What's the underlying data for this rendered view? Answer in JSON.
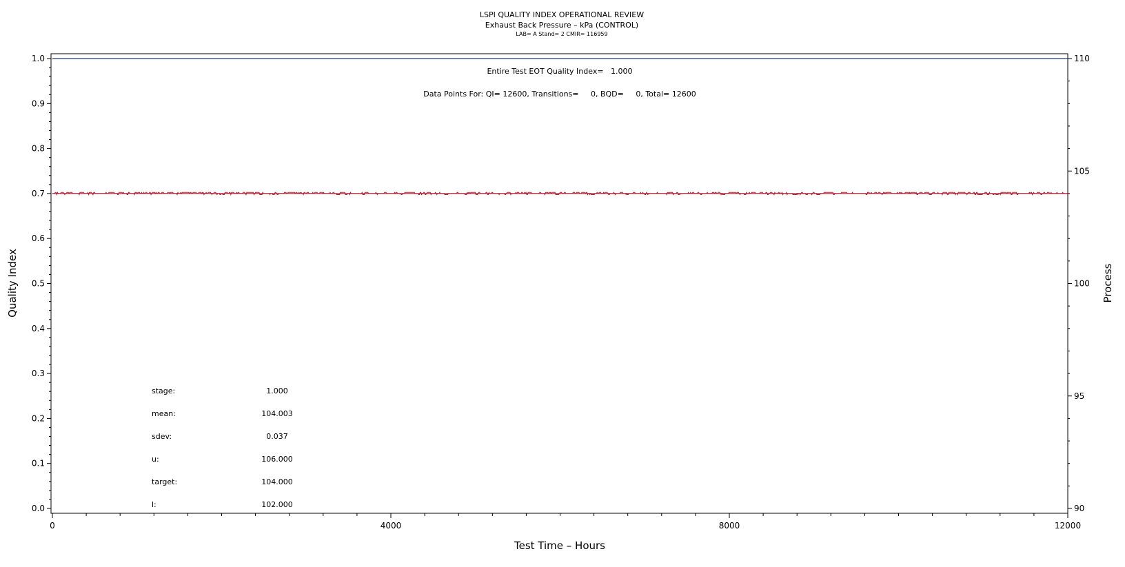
{
  "header": {
    "title": "LSPI QUALITY INDEX OPERATIONAL REVIEW",
    "subtitle": "Exhaust Back Pressure – kPa (CONTROL)",
    "info": "LAB= A Stand= 2 CMIR= 116959"
  },
  "annotations": {
    "eot_quality_index": "Entire Test EOT Quality Index=   1.000",
    "data_points": "Data Points For: QI= 12600, Transitions=     0, BQD=     0, Total= 12600"
  },
  "stats": [
    {
      "label": "stage:",
      "value": "1.000"
    },
    {
      "label": "mean:",
      "value": "104.003"
    },
    {
      "label": "sdev:",
      "value": "0.037"
    },
    {
      "label": "u:",
      "value": "106.000"
    },
    {
      "label": "target:",
      "value": "104.000"
    },
    {
      "label": "l:",
      "value": "102.000"
    }
  ],
  "colors": {
    "quality_index_line": "#1f3a68",
    "process_line": "#b01c2e",
    "axis": "#000000"
  },
  "chart_data": {
    "type": "line",
    "title": "LSPI QUALITY INDEX OPERATIONAL REVIEW",
    "xlabel": "Test Time – Hours",
    "ylabel": "Quality Index",
    "y2label": "Process",
    "xlim": [
      0,
      12000
    ],
    "ylim": [
      0,
      1
    ],
    "y2lim": [
      90,
      110
    ],
    "x_ticks": [
      0,
      4000,
      8000,
      12000
    ],
    "y_ticks": [
      "0.0",
      "0.1",
      "0.2",
      "0.3",
      "0.4",
      "0.5",
      "0.6",
      "0.7",
      "0.8",
      "0.9",
      "1.0"
    ],
    "y2_ticks": [
      90,
      95,
      100,
      105,
      110
    ],
    "grid": false,
    "legend": "none",
    "series": [
      {
        "axis": "left",
        "x": [
          0,
          12000
        ],
        "values": [
          1.0,
          1.0
        ]
      },
      {
        "axis": "right",
        "baseline": 104.0,
        "upper_level": 104.05,
        "lower_level": 103.95,
        "x_range": [
          0,
          12000
        ],
        "n_points": 12600
      }
    ]
  }
}
